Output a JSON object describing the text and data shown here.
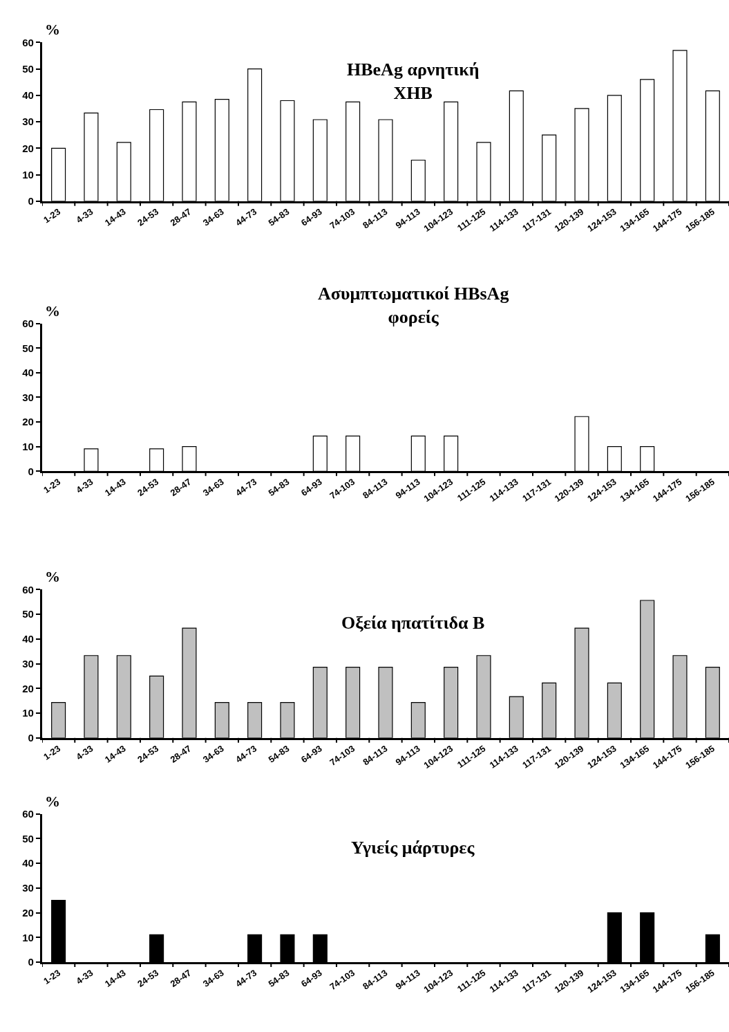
{
  "chart_data": [
    {
      "type": "bar",
      "title": "HBeAg αρνητική\nΧΗΒ",
      "ylabel": "%",
      "categories": [
        "1-23",
        "4-33",
        "14-43",
        "24-53",
        "28-47",
        "34-63",
        "44-73",
        "54-83",
        "64-93",
        "74-103",
        "84-113",
        "94-113",
        "104-123",
        "111-125",
        "114-133",
        "117-131",
        "120-139",
        "124-153",
        "134-165",
        "144-175",
        "156-185"
      ],
      "color": "#ffffff",
      "values": [
        20,
        33.3,
        22.2,
        34.6,
        37.5,
        38.5,
        50,
        38,
        30.8,
        37.5,
        30.8,
        15.5,
        37.5,
        22.2,
        41.7,
        25,
        35,
        40,
        46,
        57,
        41.7
      ],
      "ylim": [
        0,
        60
      ],
      "yticks": [
        0,
        10,
        20,
        30,
        40,
        50,
        60
      ]
    },
    {
      "type": "bar",
      "title": "Ασυμπτωματικοί HBsAg\nφορείς",
      "ylabel": "%",
      "categories": [
        "1-23",
        "4-33",
        "14-43",
        "24-53",
        "28-47",
        "34-63",
        "44-73",
        "54-83",
        "64-93",
        "74-103",
        "84-113",
        "94-113",
        "104-123",
        "111-125",
        "114-133",
        "117-131",
        "120-139",
        "124-153",
        "134-165",
        "144-175",
        "156-185"
      ],
      "color": "#ffffff",
      "values": [
        0,
        9.1,
        0,
        9.1,
        10,
        0,
        0,
        0,
        14.3,
        14.3,
        0,
        14.3,
        14.3,
        0,
        0,
        0,
        22.2,
        10,
        10,
        0,
        0
      ],
      "ylim": [
        0,
        60
      ],
      "yticks": [
        0,
        10,
        20,
        30,
        40,
        50,
        60
      ]
    },
    {
      "type": "bar",
      "title": "Οξεία ηπατίτιδα Β",
      "ylabel": "%",
      "categories": [
        "1-23",
        "4-33",
        "14-43",
        "24-53",
        "28-47",
        "34-63",
        "44-73",
        "54-83",
        "64-93",
        "74-103",
        "84-113",
        "94-113",
        "104-123",
        "111-125",
        "114-133",
        "117-131",
        "120-139",
        "124-153",
        "134-165",
        "144-175",
        "156-185"
      ],
      "color": "#c0c0c0",
      "values": [
        14.3,
        33.3,
        33.3,
        25,
        44.4,
        14.3,
        14.3,
        14.3,
        28.6,
        28.6,
        28.6,
        14.3,
        28.6,
        33.3,
        16.7,
        22.2,
        44.4,
        22.2,
        55.6,
        33.3,
        28.6
      ],
      "ylim": [
        0,
        60
      ],
      "yticks": [
        0,
        10,
        20,
        30,
        40,
        50,
        60
      ]
    },
    {
      "type": "bar",
      "title": "Υγιείς μάρτυρες",
      "ylabel": "%",
      "categories": [
        "1-23",
        "4-33",
        "14-43",
        "24-53",
        "28-47",
        "34-63",
        "44-73",
        "54-83",
        "64-93",
        "74-103",
        "84-113",
        "94-113",
        "104-123",
        "111-125",
        "114-133",
        "117-131",
        "120-139",
        "124-153",
        "134-165",
        "144-175",
        "156-185"
      ],
      "color": "#000000",
      "values": [
        25,
        0,
        0,
        11.1,
        0,
        0,
        11.1,
        11.1,
        11.1,
        0,
        0,
        0,
        0,
        0,
        0,
        0,
        0,
        20,
        20,
        0,
        11.1
      ],
      "ylim": [
        0,
        60
      ],
      "yticks": [
        0,
        10,
        20,
        30,
        40,
        50,
        60
      ]
    }
  ]
}
